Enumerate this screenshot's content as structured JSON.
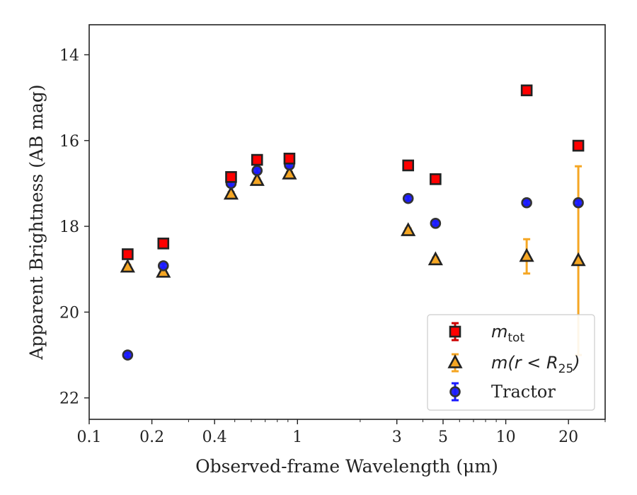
{
  "chart_data": {
    "type": "scatter",
    "xlabel": "Observed-frame Wavelength (μm)",
    "ylabel": "Apparent Brightness (AB mag)",
    "xscale": "log",
    "xlim": [
      0.1,
      30
    ],
    "ylim": [
      22.5,
      13.3
    ],
    "y_inverted": true,
    "x_ticks": [
      0.1,
      0.2,
      0.4,
      1,
      3,
      5,
      10,
      20
    ],
    "x_tick_labels": [
      "0.1",
      "0.2",
      "0.4",
      "1",
      "3",
      "5",
      "10",
      "20"
    ],
    "y_ticks": [
      14,
      16,
      18,
      20,
      22
    ],
    "y_tick_labels": [
      "14",
      "16",
      "18",
      "20",
      "22"
    ],
    "grid": false,
    "legend_position": "lower-right",
    "series": [
      {
        "name_main": "m",
        "name_sub": "tot",
        "marker": "square",
        "fill": "#ff0000",
        "edge": "#222222",
        "errorbar_color": "#cc0000",
        "points": [
          {
            "x": 0.153,
            "y": 18.65,
            "err": 0.05
          },
          {
            "x": 0.227,
            "y": 18.4,
            "err": 0.05
          },
          {
            "x": 0.48,
            "y": 16.85,
            "err": 0.05
          },
          {
            "x": 0.64,
            "y": 16.45,
            "err": 0.05
          },
          {
            "x": 0.915,
            "y": 16.42,
            "err": 0.05
          },
          {
            "x": 3.4,
            "y": 16.58,
            "err": 0.05
          },
          {
            "x": 4.6,
            "y": 16.9,
            "err": 0.05
          },
          {
            "x": 12.6,
            "y": 14.83,
            "err": 0.05
          },
          {
            "x": 22.3,
            "y": 16.12,
            "err": 0.05
          }
        ]
      },
      {
        "name_main": "m(r < R",
        "name_sub": "25",
        "name_end": ")",
        "marker": "triangle",
        "fill": "#f5a623",
        "edge": "#222222",
        "errorbar_color": "#f5a623",
        "points": [
          {
            "x": 0.153,
            "y": 18.95,
            "err": 0.05
          },
          {
            "x": 0.227,
            "y": 19.07,
            "err": 0.05
          },
          {
            "x": 0.48,
            "y": 17.25,
            "err": 0.05
          },
          {
            "x": 0.64,
            "y": 16.93,
            "err": 0.05
          },
          {
            "x": 0.915,
            "y": 16.78,
            "err": 0.05
          },
          {
            "x": 3.4,
            "y": 18.1,
            "err": 0.05
          },
          {
            "x": 4.6,
            "y": 18.78,
            "err": 0.05
          },
          {
            "x": 12.6,
            "y": 18.7,
            "err": 0.4
          },
          {
            "x": 22.3,
            "y": 18.8,
            "err": 2.2
          }
        ]
      },
      {
        "name_main": "Tractor",
        "marker": "circle",
        "fill": "#1a1aff",
        "edge": "#333333",
        "errorbar_color": "#1a1aff",
        "points": [
          {
            "x": 0.153,
            "y": 21.0,
            "err": 0.05
          },
          {
            "x": 0.227,
            "y": 18.92,
            "err": 0.05
          },
          {
            "x": 0.48,
            "y": 17.0,
            "err": 0.05
          },
          {
            "x": 0.64,
            "y": 16.7,
            "err": 0.05
          },
          {
            "x": 0.915,
            "y": 16.57,
            "err": 0.05
          },
          {
            "x": 3.4,
            "y": 17.35,
            "err": 0.05
          },
          {
            "x": 4.6,
            "y": 17.93,
            "err": 0.05
          },
          {
            "x": 12.6,
            "y": 17.45,
            "err": 0.05
          },
          {
            "x": 22.3,
            "y": 17.45,
            "err": 0.05
          }
        ]
      }
    ]
  }
}
